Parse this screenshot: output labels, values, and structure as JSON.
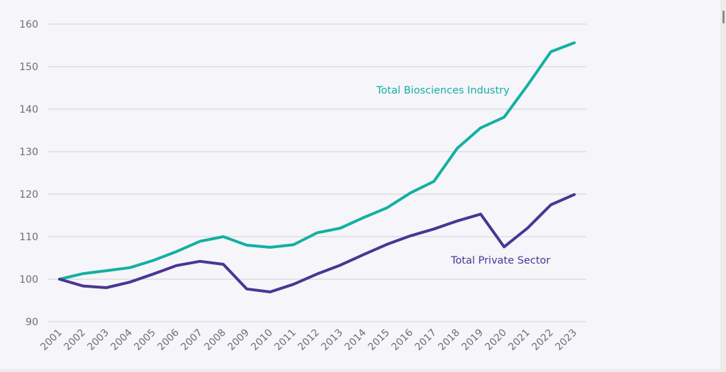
{
  "chart_data": {
    "type": "line",
    "title": "",
    "xlabel": "",
    "ylabel": "",
    "ylim": [
      90,
      160
    ],
    "yticks": [
      "90",
      "100",
      "110",
      "120",
      "130",
      "140",
      "150",
      "160"
    ],
    "grid": true,
    "legend": "inline labels",
    "x": [
      "2001",
      "2002",
      "2003",
      "2004",
      "2005",
      "2006",
      "2007",
      "2008",
      "2009",
      "2010",
      "2011",
      "2012",
      "2013",
      "2014",
      "2015",
      "2016",
      "2017",
      "2018",
      "2019",
      "2020",
      "2021",
      "2022",
      "2023"
    ],
    "series": [
      {
        "name": "Total Biosciences Industry",
        "color": "#14b0a2",
        "values": [
          100,
          101.3,
          102,
          102.7,
          104.4,
          106.5,
          108.9,
          110,
          108,
          107.5,
          108.1,
          110.9,
          112,
          114.5,
          116.8,
          120.3,
          123,
          130.8,
          135.6,
          138.1,
          145.6,
          153.5,
          155.6
        ]
      },
      {
        "name": "Total Private Sector",
        "color": "#4a3592",
        "values": [
          100,
          98.4,
          98,
          99.3,
          101.2,
          103.2,
          104.2,
          103.5,
          97.7,
          97,
          98.8,
          101.2,
          103.3,
          105.8,
          108.2,
          110.2,
          111.8,
          113.7,
          115.3,
          107.6,
          112,
          117.5,
          119.9
        ]
      }
    ],
    "annotations": [
      {
        "text": "Total Biosciences Industry",
        "series": 0
      },
      {
        "text": "Total Private Sector",
        "series": 1
      }
    ]
  }
}
